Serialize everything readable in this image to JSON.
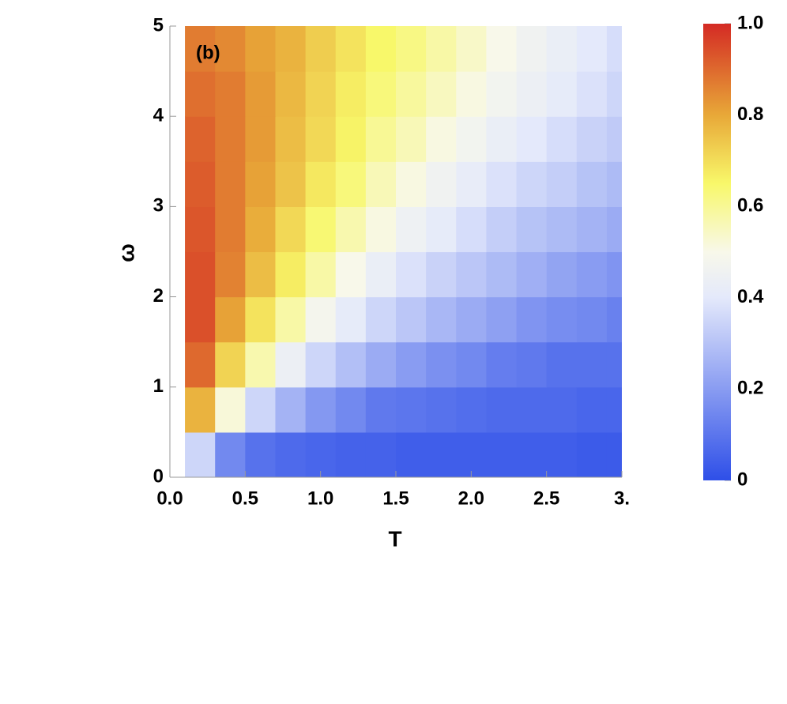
{
  "chart_data": {
    "type": "heatmap",
    "annotation": "(b)",
    "xlabel": "T",
    "ylabel": "ω",
    "x": [
      0.2,
      0.4,
      0.6,
      0.8,
      1.0,
      1.2,
      1.4,
      1.6,
      1.8,
      2.0,
      2.2,
      2.4,
      2.6,
      2.8,
      3.0
    ],
    "y": [
      0.25,
      0.75,
      1.25,
      1.75,
      2.25,
      2.75,
      3.25,
      3.75,
      4.25,
      4.75
    ],
    "values": [
      [
        0.35,
        0.15,
        0.09,
        0.07,
        0.06,
        0.05,
        0.05,
        0.04,
        0.04,
        0.04,
        0.04,
        0.04,
        0.04,
        0.03,
        0.03
      ],
      [
        0.78,
        0.52,
        0.35,
        0.26,
        0.19,
        0.15,
        0.11,
        0.1,
        0.09,
        0.08,
        0.07,
        0.07,
        0.07,
        0.06,
        0.06
      ],
      [
        0.9,
        0.72,
        0.57,
        0.44,
        0.35,
        0.29,
        0.24,
        0.2,
        0.17,
        0.15,
        0.12,
        0.11,
        0.09,
        0.09,
        0.09
      ],
      [
        0.94,
        0.81,
        0.69,
        0.58,
        0.48,
        0.41,
        0.35,
        0.31,
        0.27,
        0.24,
        0.21,
        0.18,
        0.16,
        0.15,
        0.13
      ],
      [
        0.94,
        0.86,
        0.76,
        0.67,
        0.58,
        0.5,
        0.43,
        0.38,
        0.34,
        0.31,
        0.28,
        0.25,
        0.22,
        0.2,
        0.18
      ],
      [
        0.93,
        0.87,
        0.79,
        0.71,
        0.64,
        0.57,
        0.51,
        0.45,
        0.41,
        0.37,
        0.33,
        0.3,
        0.28,
        0.26,
        0.24
      ],
      [
        0.92,
        0.87,
        0.81,
        0.75,
        0.68,
        0.63,
        0.56,
        0.51,
        0.46,
        0.42,
        0.38,
        0.35,
        0.33,
        0.3,
        0.28
      ],
      [
        0.91,
        0.87,
        0.82,
        0.76,
        0.71,
        0.66,
        0.6,
        0.56,
        0.51,
        0.47,
        0.43,
        0.4,
        0.37,
        0.34,
        0.32
      ],
      [
        0.89,
        0.87,
        0.82,
        0.77,
        0.72,
        0.67,
        0.63,
        0.59,
        0.55,
        0.51,
        0.47,
        0.44,
        0.41,
        0.38,
        0.35
      ],
      [
        0.87,
        0.85,
        0.81,
        0.78,
        0.73,
        0.69,
        0.65,
        0.62,
        0.58,
        0.54,
        0.5,
        0.46,
        0.43,
        0.4,
        0.37
      ]
    ],
    "xlim": [
      0,
      3
    ],
    "ylim": [
      0,
      5
    ],
    "xticks": [
      {
        "value": 0,
        "label": "0.0"
      },
      0.5,
      {
        "value": 1,
        "label": "1.0"
      },
      1.5,
      {
        "value": 2,
        "label": "2.0"
      },
      2.5,
      {
        "value": 3,
        "label": "3."
      }
    ],
    "yticks": [
      0,
      1,
      2,
      3,
      4,
      5
    ],
    "colorscale": [
      [
        0,
        "#2e4fe8"
      ],
      [
        0.4,
        "#e4e9fb"
      ],
      [
        0.5,
        "#f8f8ea"
      ],
      [
        0.65,
        "#f8f86a"
      ],
      [
        0.8,
        "#e8a838"
      ],
      [
        1,
        "#d42a24"
      ]
    ],
    "colorbar_lim": [
      0,
      1
    ],
    "colorbar_ticks": [
      {
        "value": 0,
        "label": "0"
      },
      0.2,
      0.4,
      0.6,
      0.8,
      {
        "value": 1,
        "label": "1.0"
      }
    ]
  }
}
